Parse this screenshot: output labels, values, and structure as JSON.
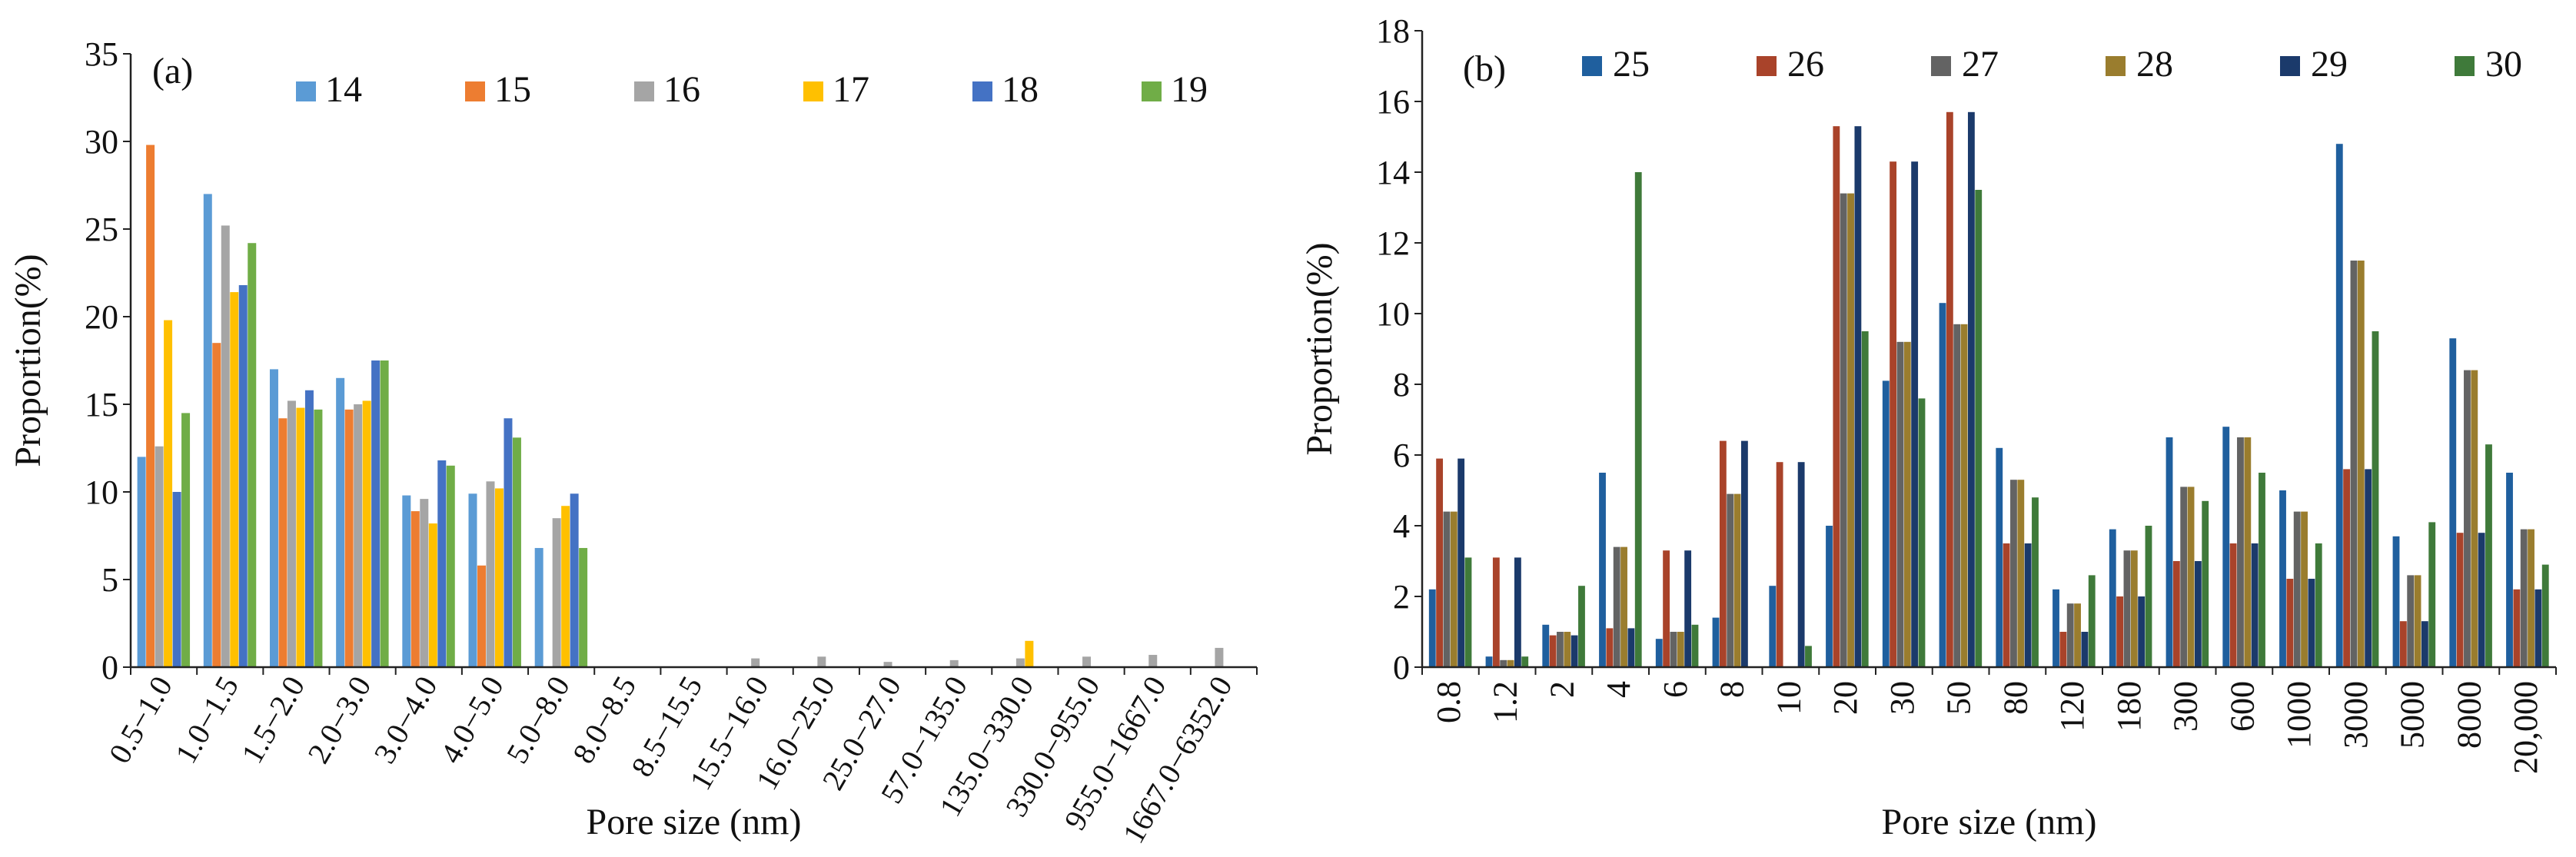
{
  "chart_data": [
    {
      "type": "bar",
      "panel": "(a)",
      "xlabel": "Pore size (nm)",
      "ylabel": "Proportion(%)",
      "ylim": [
        0,
        35
      ],
      "yticks": [
        "0",
        "5",
        "10",
        "15",
        "20",
        "25",
        "30",
        "35"
      ],
      "legend_position": "top",
      "categories": [
        "0.5−1.0",
        "1.0−1.5",
        "1.5−2.0",
        "2.0−3.0",
        "3.0−4.0",
        "4.0−5.0",
        "5.0−8.0",
        "8.0−8.5",
        "8.5−15.5",
        "15.5−16.0",
        "16.0−25.0",
        "25.0−27.0",
        "57.0−135.0",
        "135.0−330.0",
        "330.0−955.0",
        "955.0−1667.0",
        "1667.0−6352.0"
      ],
      "series": [
        {
          "name": "14",
          "color": "#5b9bd5",
          "values": [
            12.0,
            27.0,
            17.0,
            16.5,
            9.8,
            9.9,
            6.8,
            0,
            0,
            0,
            0,
            0,
            0,
            0,
            0,
            0,
            0
          ]
        },
        {
          "name": "15",
          "color": "#ed7d31",
          "values": [
            29.8,
            18.5,
            14.2,
            14.7,
            8.9,
            5.8,
            0,
            0,
            0,
            0,
            0,
            0,
            0,
            0,
            0,
            0,
            0
          ]
        },
        {
          "name": "16",
          "color": "#a5a5a5",
          "values": [
            12.6,
            25.2,
            15.2,
            15.0,
            9.6,
            10.6,
            8.5,
            0,
            0,
            0.5,
            0.6,
            0.3,
            0.4,
            0.5,
            0.6,
            0.7,
            1.1
          ]
        },
        {
          "name": "17",
          "color": "#ffc000",
          "values": [
            19.8,
            21.4,
            14.8,
            15.2,
            8.2,
            10.2,
            9.2,
            0,
            0,
            0,
            0,
            0,
            0,
            1.5,
            0,
            0,
            0
          ]
        },
        {
          "name": "18",
          "color": "#4472c4",
          "values": [
            10.0,
            21.8,
            15.8,
            17.5,
            11.8,
            14.2,
            9.9,
            0,
            0,
            0,
            0,
            0,
            0,
            0,
            0,
            0,
            0
          ]
        },
        {
          "name": "19",
          "color": "#70ad47",
          "values": [
            14.5,
            24.2,
            14.7,
            17.5,
            11.5,
            13.1,
            6.8,
            0,
            0,
            0,
            0,
            0,
            0,
            0,
            0,
            0,
            0
          ]
        }
      ]
    },
    {
      "type": "bar",
      "panel": "(b)",
      "xlabel": "Pore size (nm)",
      "ylabel": "Proportion(%)",
      "ylim": [
        0,
        18
      ],
      "yticks": [
        "0",
        "2",
        "4",
        "6",
        "8",
        "10",
        "12",
        "14",
        "16",
        "18"
      ],
      "legend_position": "top",
      "categories": [
        "0.8",
        "1.2",
        "2",
        "4",
        "6",
        "8",
        "10",
        "20",
        "30",
        "50",
        "80",
        "120",
        "180",
        "300",
        "600",
        "1000",
        "3000",
        "5000",
        "8000",
        "20,000"
      ],
      "series": [
        {
          "name": "25",
          "color": "#1f5f9e",
          "values": [
            2.2,
            0.3,
            1.2,
            5.5,
            0.8,
            1.4,
            2.3,
            4.0,
            8.1,
            10.3,
            6.2,
            2.2,
            3.9,
            6.5,
            6.8,
            5.0,
            14.8,
            3.7,
            9.3,
            5.5
          ]
        },
        {
          "name": "26",
          "color": "#a9432a",
          "values": [
            5.9,
            3.1,
            0.9,
            1.1,
            3.3,
            6.4,
            5.8,
            15.3,
            14.3,
            15.7,
            3.5,
            1.0,
            2.0,
            3.0,
            3.5,
            2.5,
            5.6,
            1.3,
            3.8,
            2.2
          ]
        },
        {
          "name": "27",
          "color": "#636363",
          "values": [
            4.4,
            0.2,
            1.0,
            3.4,
            1.0,
            4.9,
            0,
            13.4,
            9.2,
            9.7,
            5.3,
            1.8,
            3.3,
            5.1,
            6.5,
            4.4,
            11.5,
            2.6,
            8.4,
            3.9
          ]
        },
        {
          "name": "28",
          "color": "#9a7d2e",
          "values": [
            4.4,
            0.2,
            1.0,
            3.4,
            1.0,
            4.9,
            0,
            13.4,
            9.2,
            9.7,
            5.3,
            1.8,
            3.3,
            5.1,
            6.5,
            4.4,
            11.5,
            2.6,
            8.4,
            3.9
          ]
        },
        {
          "name": "29",
          "color": "#1b3a6b",
          "values": [
            5.9,
            3.1,
            0.9,
            1.1,
            3.3,
            6.4,
            5.8,
            15.3,
            14.3,
            15.7,
            3.5,
            1.0,
            2.0,
            3.0,
            3.5,
            2.5,
            5.6,
            1.3,
            3.8,
            2.2
          ]
        },
        {
          "name": "30",
          "color": "#3f7a3a",
          "values": [
            3.1,
            0.3,
            2.3,
            14.0,
            1.2,
            0,
            0.6,
            9.5,
            7.6,
            13.5,
            4.8,
            2.6,
            4.0,
            4.7,
            5.5,
            3.5,
            9.5,
            4.1,
            6.3,
            2.9
          ]
        }
      ]
    }
  ]
}
